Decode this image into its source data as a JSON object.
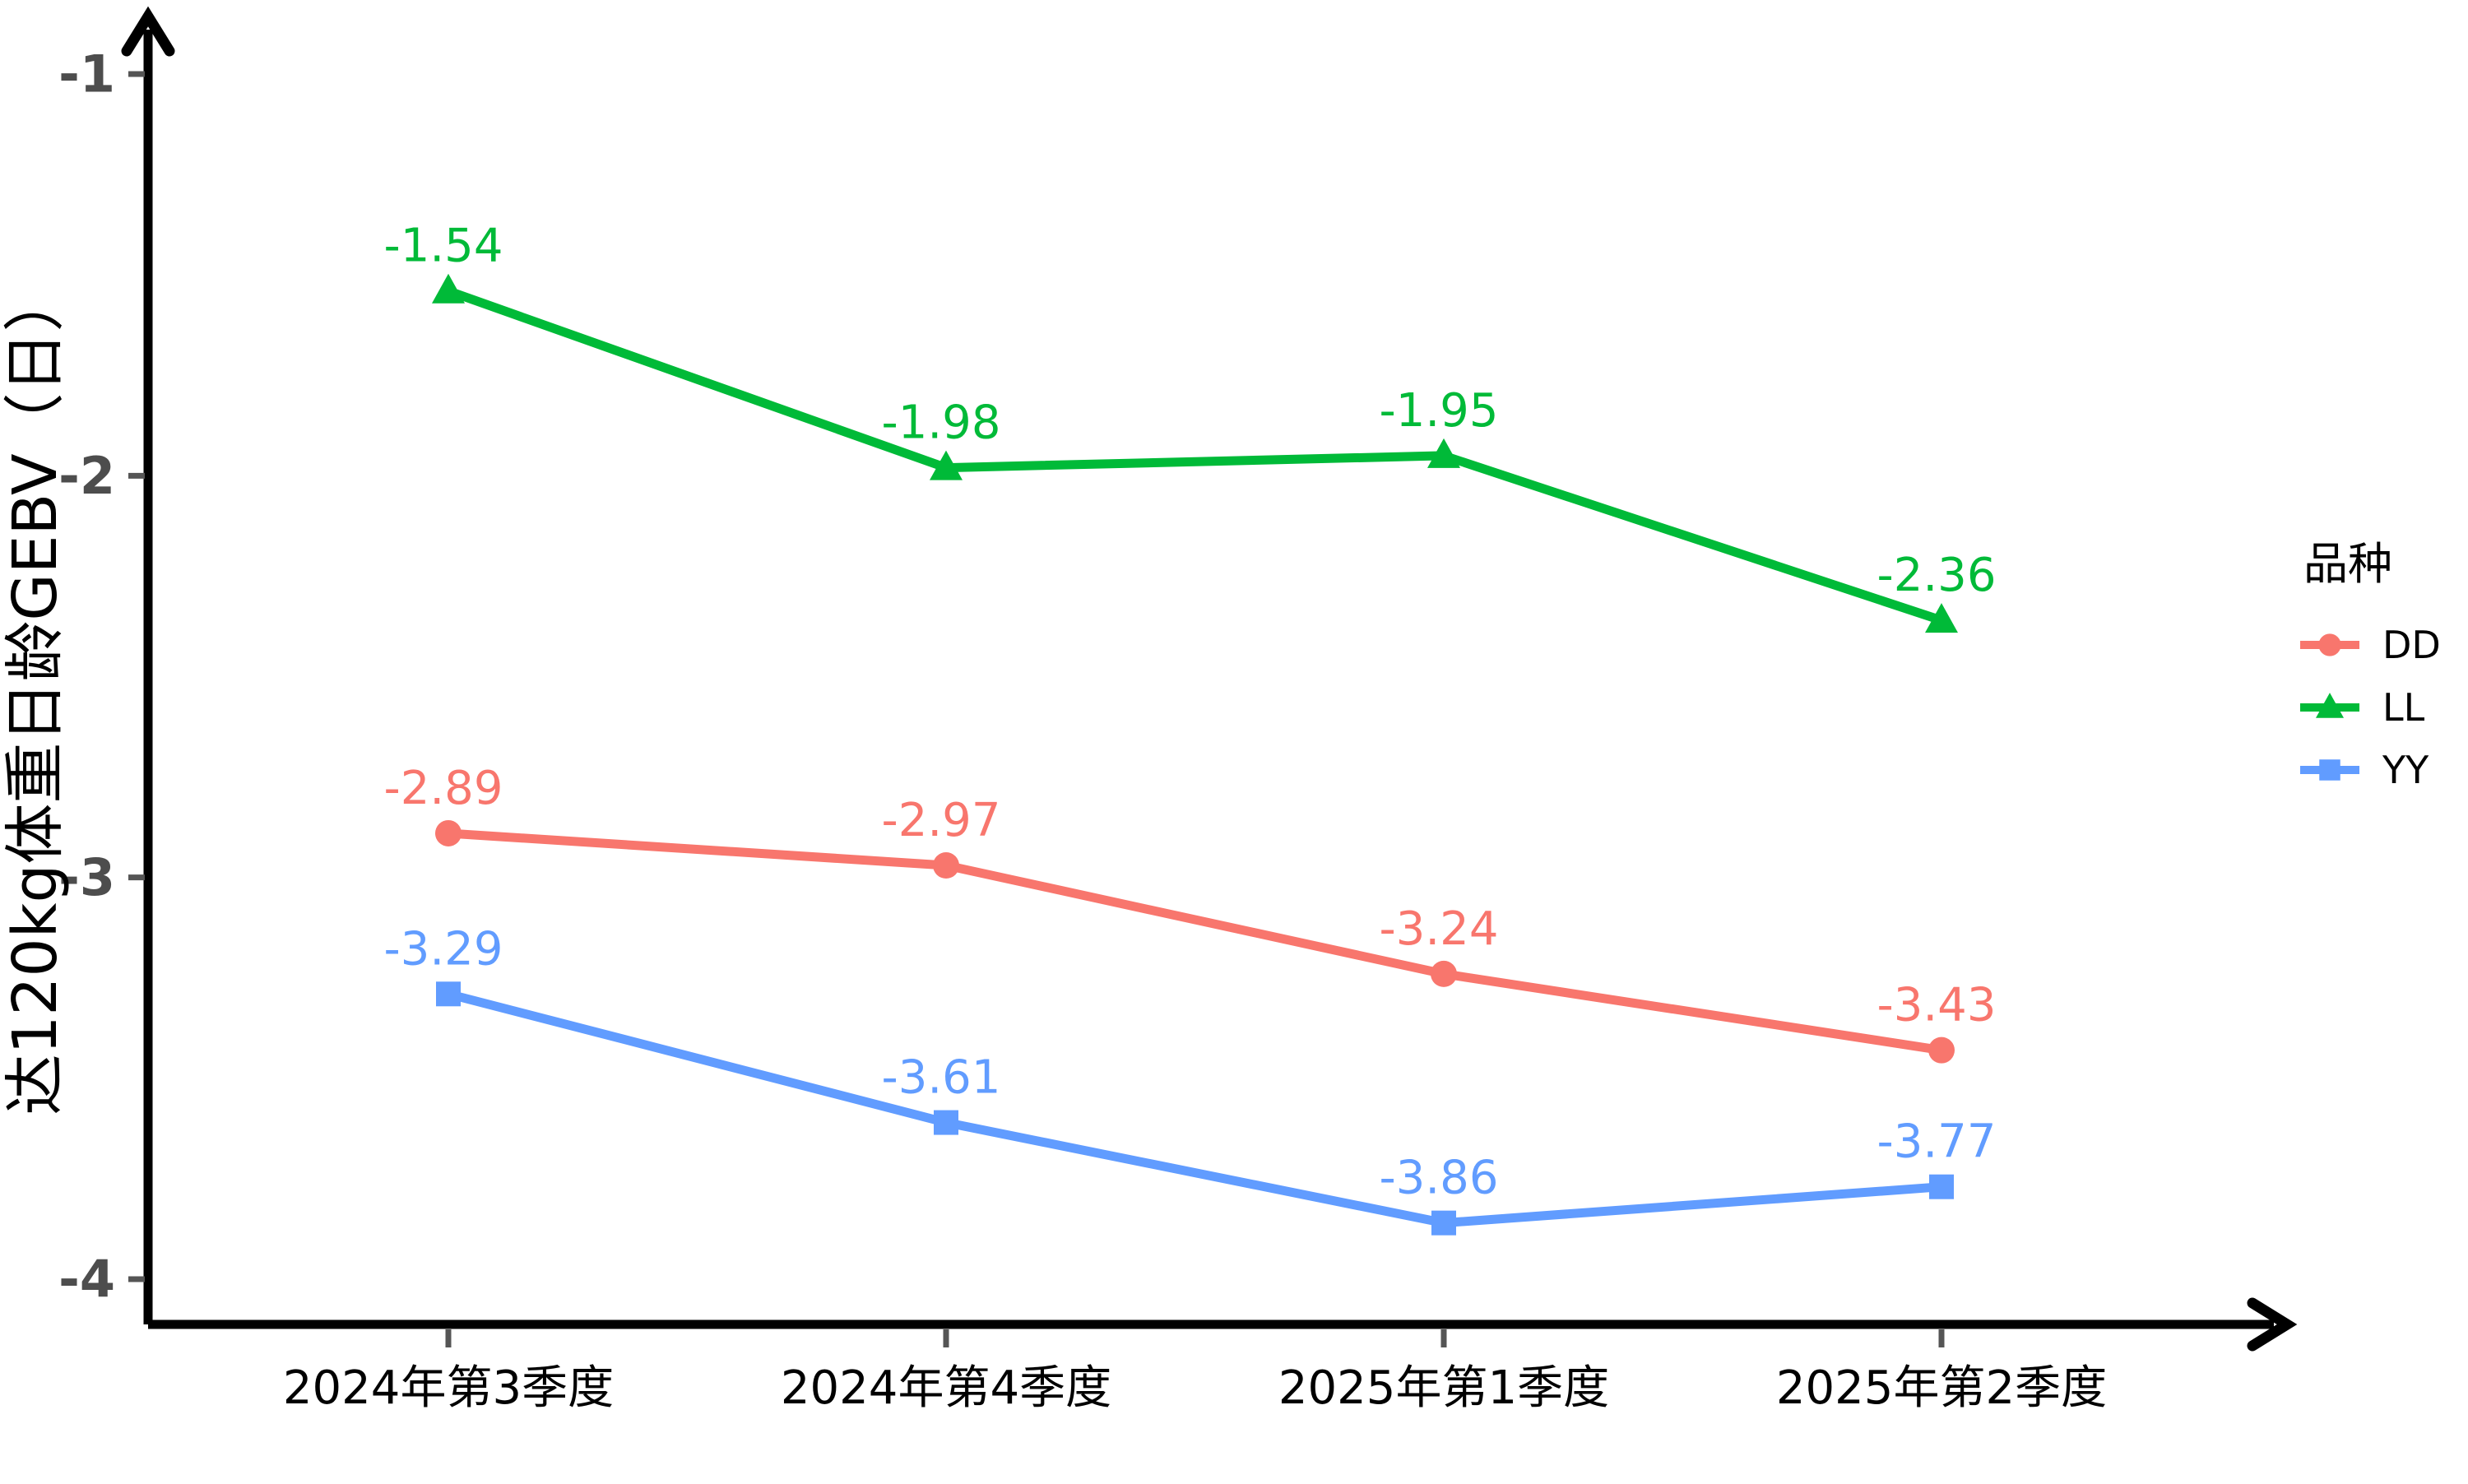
{
  "chart_data": {
    "type": "line",
    "title": "",
    "xlabel": "",
    "ylabel": "达120kg体重日龄GEBV（日）",
    "categories": [
      "2024年第3季度",
      "2024年第4季度",
      "2025年第1季度",
      "2025年第2季度"
    ],
    "series": [
      {
        "name": "DD",
        "color": "#F8766D",
        "marker": "circle",
        "values": [
          -2.89,
          -2.97,
          -3.24,
          -3.43
        ],
        "labels": [
          "-2.89",
          "-2.97",
          "-3.24",
          "-3.43"
        ]
      },
      {
        "name": "LL",
        "color": "#00BA38",
        "marker": "triangle",
        "values": [
          -1.54,
          -1.98,
          -1.95,
          -2.36
        ],
        "labels": [
          "-1.54",
          "-1.98",
          "-1.95",
          "-2.36"
        ]
      },
      {
        "name": "YY",
        "color": "#619CFF",
        "marker": "square",
        "values": [
          -3.29,
          -3.61,
          -3.86,
          -3.77
        ],
        "labels": [
          "-3.29",
          "-3.61",
          "-3.86",
          "-3.77"
        ]
      }
    ],
    "yticks": [
      -1,
      -2,
      -3,
      -4
    ],
    "ytick_labels": [
      "-1",
      "-2",
      "-3",
      "-4"
    ],
    "ylim": [
      -4.25,
      -0.85
    ],
    "grid": false,
    "legend_title": "品种",
    "legend_position": "right",
    "axis_color": "#000000",
    "tick_label_color": "#4d4d4d",
    "x_label_color": "#000000"
  }
}
